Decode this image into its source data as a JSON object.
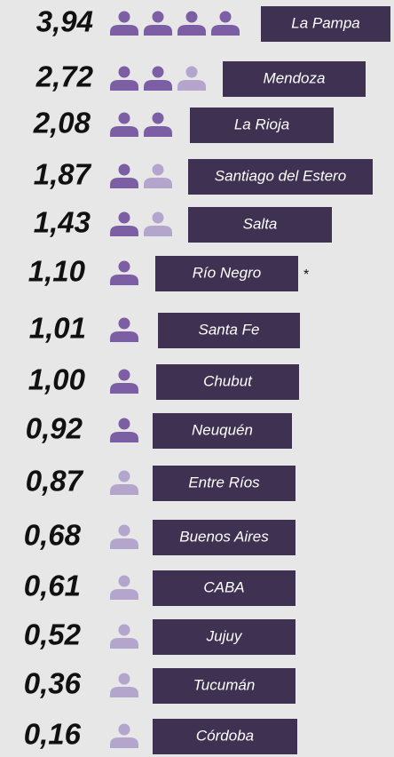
{
  "chart_data": {
    "type": "pictograph",
    "categories": [
      "La Pampa",
      "Mendoza",
      "La Rioja",
      "Santiago del Estero",
      "Salta",
      "Río Negro",
      "Santa Fe",
      "Chubut",
      "Neuquén",
      "Entre Ríos",
      "Buenos Aires",
      "CABA",
      "Jujuy",
      "Tucumán",
      "Córdoba"
    ],
    "values": [
      3.94,
      2.72,
      2.08,
      1.87,
      1.43,
      1.1,
      1.01,
      1.0,
      0.92,
      0.87,
      0.68,
      0.61,
      0.52,
      0.36,
      0.16
    ],
    "value_labels": [
      "3,94",
      "2,72",
      "2,08",
      "1,87",
      "1,43",
      "1,10",
      "1,01",
      "1,00",
      "0,92",
      "0,87",
      "0,68",
      "0,61",
      "0,52",
      "0,36",
      "0,16"
    ],
    "color": "#7b5ea3",
    "light_color": "#b4a5cd",
    "box_color": "#3e3152",
    "annotations": [
      {
        "category": "Río Negro",
        "text": "*"
      }
    ]
  }
}
